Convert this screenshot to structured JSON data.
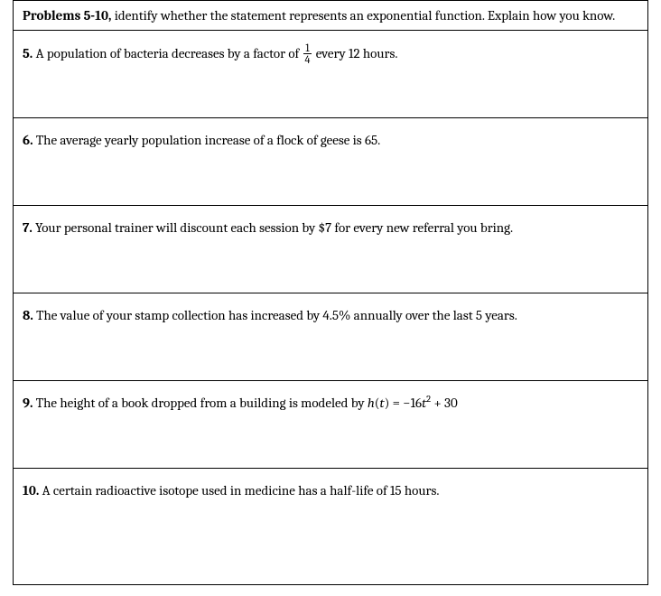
{
  "header": {
    "bold_lead": "Problems 5-10,",
    "instructions": " identify whether the statement represents an exponential function.  Explain how you know."
  },
  "problems": {
    "p5": {
      "num": "5.",
      "text_before": "  A population of bacteria decreases by a factor of ",
      "frac_num": "1",
      "frac_den": "4",
      "text_after": " every 12 hours."
    },
    "p6": {
      "num": "6.",
      "text": "  The average yearly population increase of a flock of geese is 65."
    },
    "p7": {
      "num": "7.",
      "text": "  Your personal trainer will discount each session by $7 for every new referral you bring."
    },
    "p8": {
      "num": "8.",
      "text": "  The value of your stamp collection has increased by 4.5% annually over the last 5 years."
    },
    "p9": {
      "num": "9.",
      "text_before": "  The height of a book dropped from a building is modeled by ",
      "math_h": "h",
      "math_open": "(",
      "math_t": "t",
      "math_close": ") = −16",
      "math_t2": "t",
      "math_sq": "2",
      "math_tail": " + 30"
    },
    "p10": {
      "num": "10.",
      "text": "  A certain radioactive isotope used in medicine has a half-life of 15 hours."
    }
  }
}
